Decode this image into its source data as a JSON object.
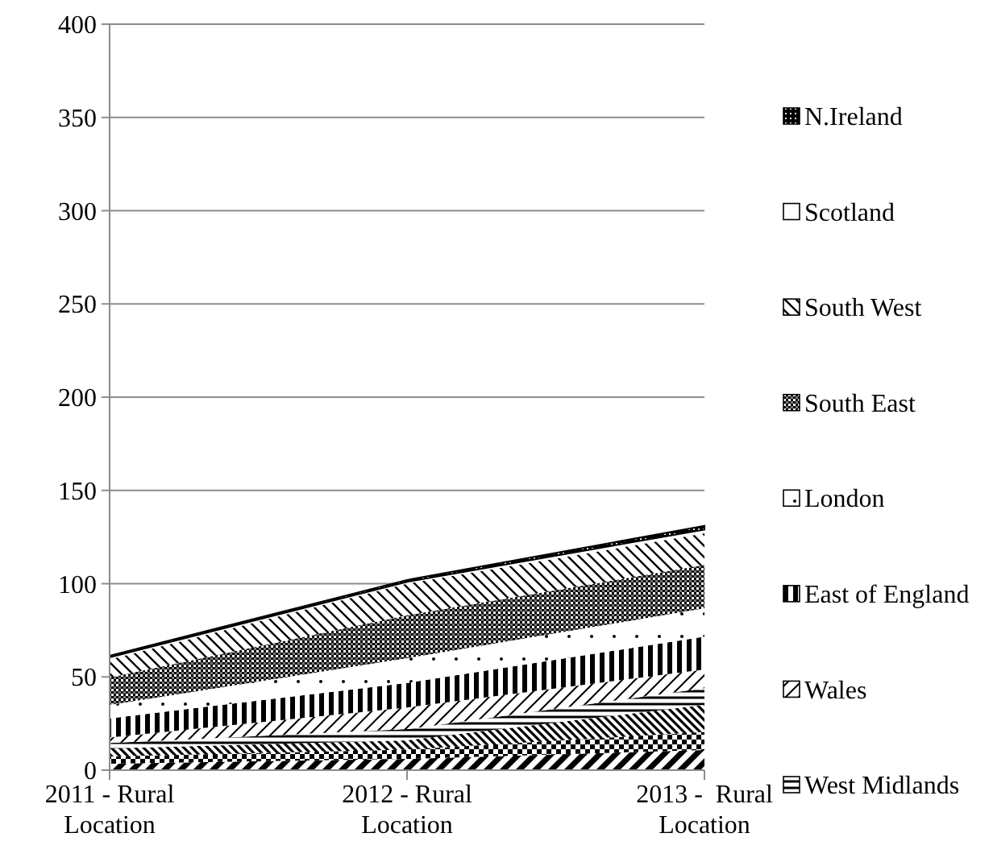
{
  "chart_data": {
    "type": "area",
    "stacked": true,
    "categories": [
      "2011 - Rural Location",
      "2012 - Rural Location",
      "2013 -  Rural Location"
    ],
    "series": [
      {
        "color": "#000000",
        "values": [
          3.5,
          6,
          10.8
        ]
      },
      {
        "color": "#000000",
        "values": [
          3.8,
          5,
          9.7
        ]
      },
      {
        "color": "#000000",
        "values": [
          4.4,
          5,
          14.5
        ]
      },
      {
        "name": "West Midlands",
        "color": "#000000",
        "values": [
          2.9,
          6,
          8.9
        ]
      },
      {
        "name": "Wales",
        "color": "#000000",
        "values": [
          2.9,
          11.6,
          10.1
        ]
      },
      {
        "name": "East of England",
        "color": "#000000",
        "values": [
          10.3,
          13.2,
          17.6
        ]
      },
      {
        "name": "London",
        "color": "#000000",
        "values": [
          7.2,
          13.2,
          15.2
        ]
      },
      {
        "name": "South East",
        "color": "#000000",
        "values": [
          14.7,
          23,
          23.2
        ]
      },
      {
        "name": "South West",
        "color": "#000000",
        "values": [
          9.7,
          17,
          17
        ]
      },
      {
        "name": "Scotland",
        "color": "#000000",
        "values": [
          1.1,
          1,
          2
        ]
      },
      {
        "name": "N.Ireland",
        "color": "#000000",
        "values": [
          0.9,
          1,
          2
        ]
      }
    ],
    "ylim": [
      0,
      400
    ],
    "yticks": [
      0,
      50,
      100,
      150,
      200,
      250,
      300,
      350,
      400
    ],
    "grid": "y",
    "legend": "right"
  }
}
